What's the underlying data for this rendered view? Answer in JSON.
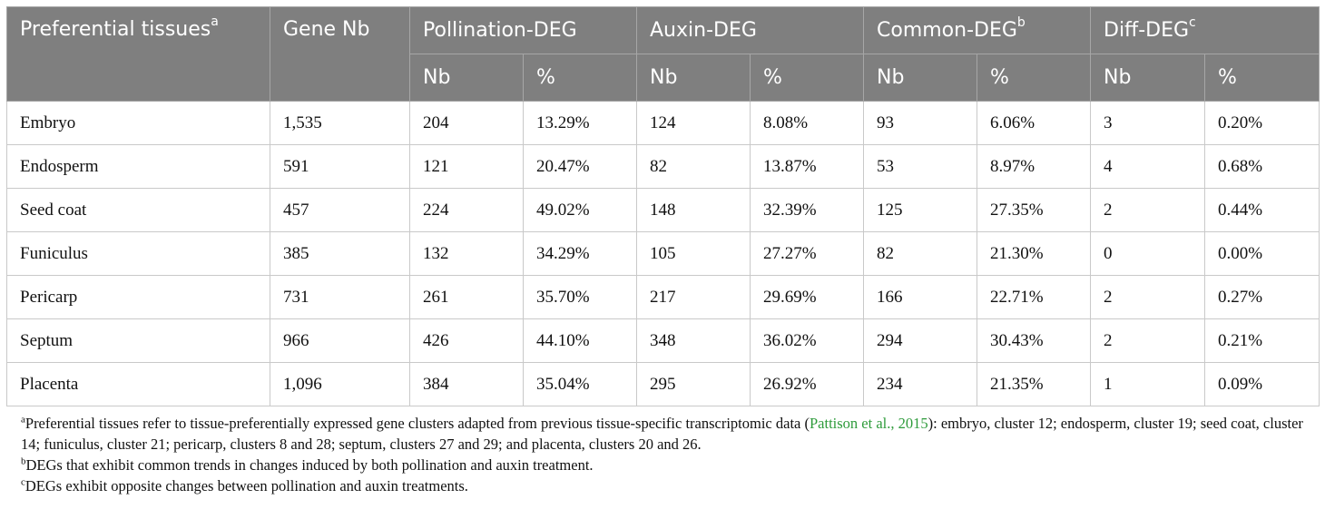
{
  "header": {
    "col1": "Preferential tissues",
    "col1_sup": "a",
    "col2": "Gene Nb",
    "col3": "Pollination-DEG",
    "col4": "Auxin-DEG",
    "col5": "Common-DEG",
    "col5_sup": "b",
    "col6": "Diff-DEG",
    "col6_sup": "c",
    "sub_nb": "Nb",
    "sub_pct": "%"
  },
  "rows": [
    {
      "tissue": "Embryo",
      "gene_nb": "1,535",
      "poll_nb": "204",
      "poll_pct": "13.29%",
      "aux_nb": "124",
      "aux_pct": "8.08%",
      "com_nb": "93",
      "com_pct": "6.06%",
      "diff_nb": "3",
      "diff_pct": "0.20%"
    },
    {
      "tissue": "Endosperm",
      "gene_nb": "591",
      "poll_nb": "121",
      "poll_pct": "20.47%",
      "aux_nb": "82",
      "aux_pct": "13.87%",
      "com_nb": "53",
      "com_pct": "8.97%",
      "diff_nb": "4",
      "diff_pct": "0.68%"
    },
    {
      "tissue": "Seed coat",
      "gene_nb": "457",
      "poll_nb": "224",
      "poll_pct": "49.02%",
      "aux_nb": "148",
      "aux_pct": "32.39%",
      "com_nb": "125",
      "com_pct": "27.35%",
      "diff_nb": "2",
      "diff_pct": "0.44%"
    },
    {
      "tissue": "Funiculus",
      "gene_nb": "385",
      "poll_nb": "132",
      "poll_pct": "34.29%",
      "aux_nb": "105",
      "aux_pct": "27.27%",
      "com_nb": "82",
      "com_pct": "21.30%",
      "diff_nb": "0",
      "diff_pct": "0.00%"
    },
    {
      "tissue": "Pericarp",
      "gene_nb": "731",
      "poll_nb": "261",
      "poll_pct": "35.70%",
      "aux_nb": "217",
      "aux_pct": "29.69%",
      "com_nb": "166",
      "com_pct": "22.71%",
      "diff_nb": "2",
      "diff_pct": "0.27%"
    },
    {
      "tissue": "Septum",
      "gene_nb": "966",
      "poll_nb": "426",
      "poll_pct": "44.10%",
      "aux_nb": "348",
      "aux_pct": "36.02%",
      "com_nb": "294",
      "com_pct": "30.43%",
      "diff_nb": "2",
      "diff_pct": "0.21%"
    },
    {
      "tissue": "Placenta",
      "gene_nb": "1,096",
      "poll_nb": "384",
      "poll_pct": "35.04%",
      "aux_nb": "295",
      "aux_pct": "26.92%",
      "com_nb": "234",
      "com_pct": "21.35%",
      "diff_nb": "1",
      "diff_pct": "0.09%"
    }
  ],
  "notes": {
    "a_mark": "a",
    "a_text_1": "Preferential tissues refer to tissue-preferentially expressed gene clusters adapted from previous tissue-specific transcriptomic data (",
    "a_cite": "Pattison et al., 2015",
    "a_text_2": "): embryo, cluster 12; endosperm, cluster 19; seed coat, cluster 14; funiculus, cluster 21; pericarp, clusters 8 and 28; septum, clusters 27 and 29; and placenta, clusters 20 and 26.",
    "b_mark": "b",
    "b_text": "DEGs that exhibit common trends in changes induced by both pollination and auxin treatment.",
    "c_mark": "c",
    "c_text": "DEGs exhibit opposite changes between pollination and auxin treatments."
  },
  "colors": {
    "header_bg": "#7f7f7f",
    "citation": "#2e9b3b"
  }
}
